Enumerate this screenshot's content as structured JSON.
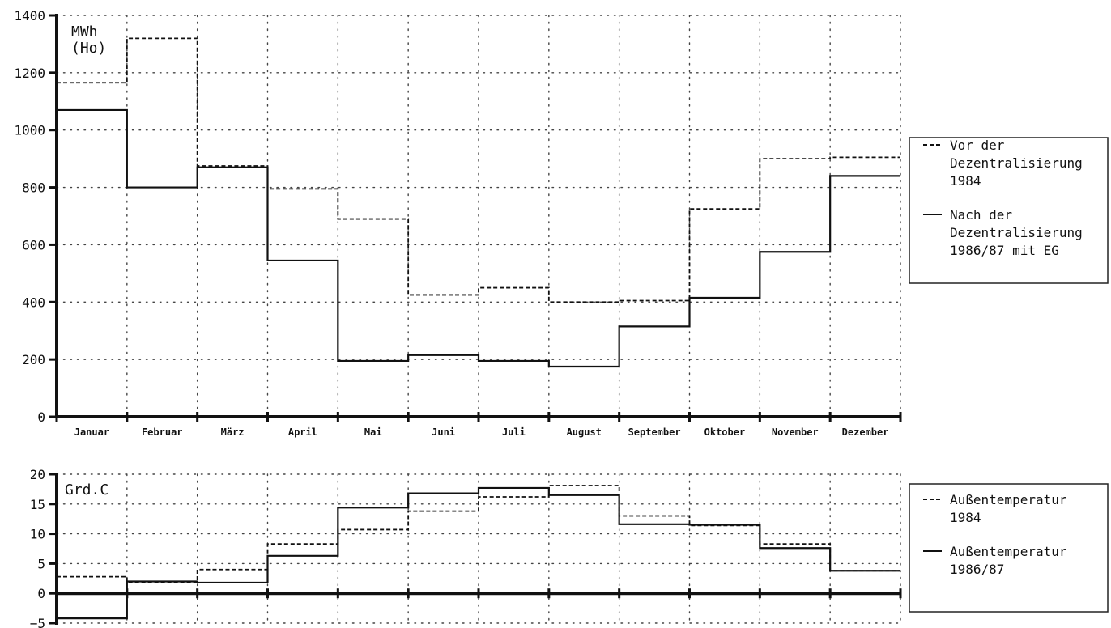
{
  "chart_data": [
    {
      "type": "line",
      "step": true,
      "ylabel_lines": [
        "MWh",
        "(Ho)"
      ],
      "ylim": [
        0,
        1400
      ],
      "yticks": [
        0,
        200,
        400,
        600,
        800,
        1000,
        1200,
        1400
      ],
      "categories": [
        "Januar",
        "Februar",
        "März",
        "April",
        "Mai",
        "Juni",
        "Juli",
        "August",
        "September",
        "Oktober",
        "November",
        "Dezember"
      ],
      "grid": true,
      "legend_position": "right",
      "series": [
        {
          "name": "Vor der Dezentralisierung 1984",
          "name_lines": [
            "Vor der",
            "Dezentralisierung",
            "1984"
          ],
          "style": "dashed",
          "values": [
            1165,
            1320,
            875,
            795,
            690,
            425,
            450,
            400,
            405,
            725,
            900,
            905
          ]
        },
        {
          "name": "Nach der Dezentralisierung 1986/87 mit EG",
          "name_lines": [
            "Nach der",
            "Dezentralisierung",
            "1986/87 mit EG"
          ],
          "style": "solid",
          "values": [
            1070,
            800,
            870,
            545,
            195,
            215,
            195,
            175,
            315,
            415,
            575,
            840
          ]
        }
      ]
    },
    {
      "type": "line",
      "step": true,
      "ylabel_lines": [
        "Grd.C"
      ],
      "ylim": [
        -5,
        20
      ],
      "yticks": [
        -5,
        0,
        5,
        10,
        15,
        20
      ],
      "ytick_labels": [
        "−5",
        "0",
        "5",
        "10",
        "15",
        "20"
      ],
      "categories": [
        "Januar",
        "Februar",
        "März",
        "April",
        "Mai",
        "Juni",
        "Juli",
        "August",
        "September",
        "Oktober",
        "November",
        "Dezember"
      ],
      "grid": true,
      "legend_position": "right",
      "series": [
        {
          "name": "Außentemperatur 1984",
          "name_lines": [
            "Außentemperatur",
            "1984"
          ],
          "style": "dashed",
          "values": [
            2.8,
            1.8,
            4,
            8.3,
            10.7,
            13.8,
            16.2,
            18.1,
            13,
            11.4,
            8.3,
            3.8
          ]
        },
        {
          "name": "Außentemperatur 1986/87",
          "name_lines": [
            "Außentemperatur",
            "1986/87"
          ],
          "style": "solid",
          "values": [
            -4.2,
            2,
            1.8,
            6.3,
            14.4,
            16.8,
            17.7,
            16.5,
            11.6,
            11.5,
            7.6,
            3.8
          ]
        }
      ]
    }
  ]
}
